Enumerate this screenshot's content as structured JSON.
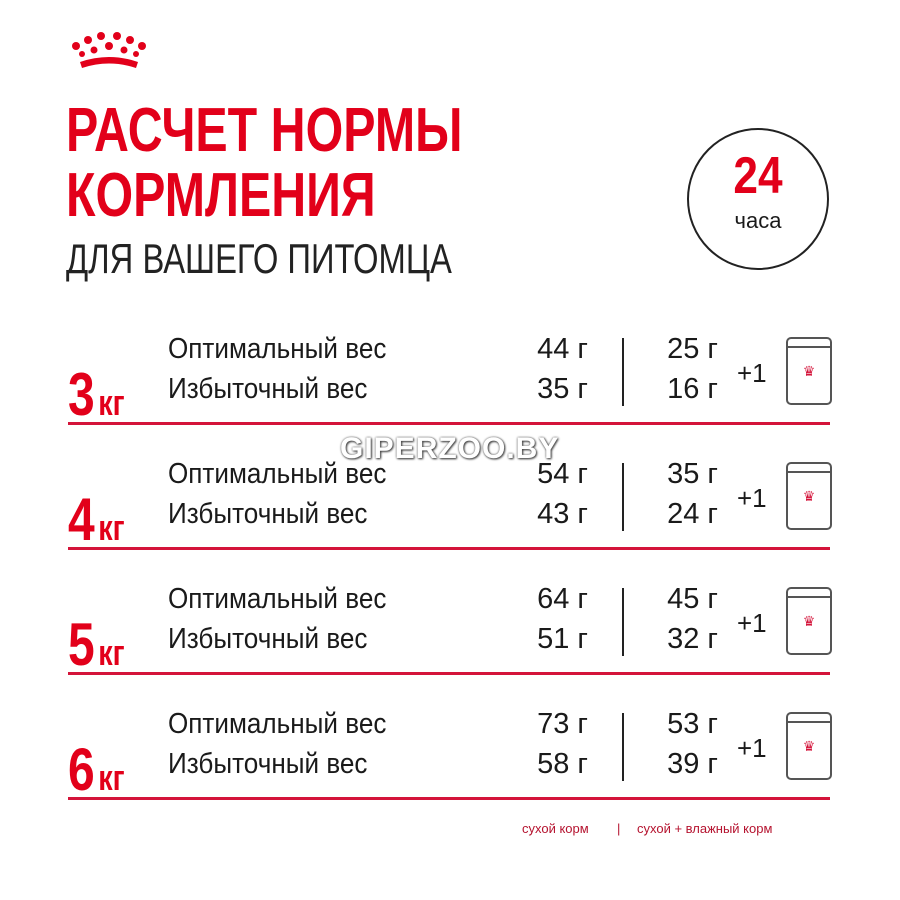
{
  "title": {
    "line1": "РАСЧЕТ НОРМЫ",
    "line2": "КОРМЛЕНИЯ",
    "line3": "ДЛЯ ВАШЕГО ПИТОМЦА"
  },
  "badge": {
    "number": "24",
    "unit": "часа"
  },
  "brand_color": "#e2001a",
  "rows": [
    {
      "weight": "3",
      "unit": "кг",
      "optimal_label": "Оптимальный вес",
      "excess_label": "Избыточный вес",
      "dry_optimal": "44 г",
      "dry_excess": "35 г",
      "mix_optimal": "25 г",
      "mix_excess": "16 г",
      "plus": "+1"
    },
    {
      "weight": "4",
      "unit": "кг",
      "optimal_label": "Оптимальный вес",
      "excess_label": "Избыточный вес",
      "dry_optimal": "54 г",
      "dry_excess": "43 г",
      "mix_optimal": "35 г",
      "mix_excess": "24 г",
      "plus": "+1"
    },
    {
      "weight": "5",
      "unit": "кг",
      "optimal_label": "Оптимальный вес",
      "excess_label": "Избыточный вес",
      "dry_optimal": "64 г",
      "dry_excess": "51 г",
      "mix_optimal": "45 г",
      "mix_excess": "32 г",
      "plus": "+1"
    },
    {
      "weight": "6",
      "unit": "кг",
      "optimal_label": "Оптимальный вес",
      "excess_label": "Избыточный вес",
      "dry_optimal": "73 г",
      "dry_excess": "58 г",
      "mix_optimal": "53 г",
      "mix_excess": "39 г",
      "plus": "+1"
    }
  ],
  "legend": {
    "dry": "сухой корм",
    "sep": "|",
    "mix": "сухой + влажный корм"
  },
  "watermark": "GIPERZOO.BY"
}
